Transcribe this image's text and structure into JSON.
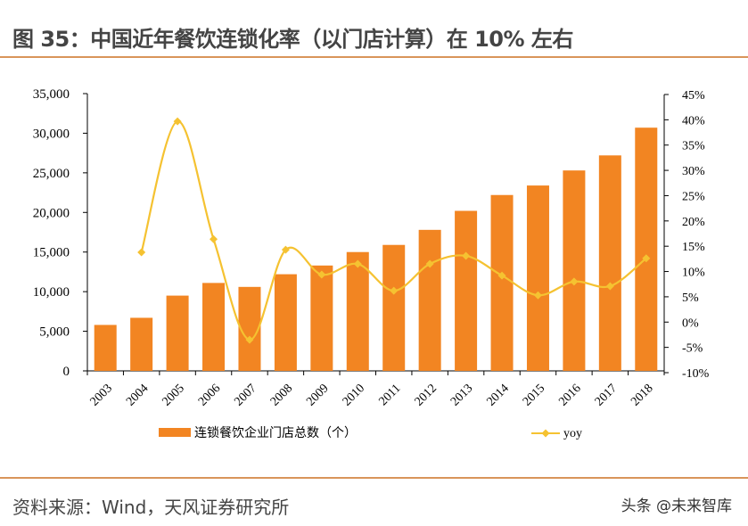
{
  "title": "图 35：中国近年餐饮连锁化率（以门店计算）在 10% 左右",
  "footer": {
    "source": "资料来源：Wind，天风证券研究所",
    "watermark": "头条 @未来智库"
  },
  "colors": {
    "bar": "#f28522",
    "line": "#f5c231",
    "rule": "#d9955a"
  },
  "chart_data": {
    "type": "bar+line",
    "categories": [
      "2003",
      "2004",
      "2005",
      "2006",
      "2007",
      "2008",
      "2009",
      "2010",
      "2011",
      "2012",
      "2013",
      "2014",
      "2015",
      "2016",
      "2017",
      "2018"
    ],
    "series": [
      {
        "name": "连锁餐饮企业门店总数（个）",
        "type": "bar",
        "axis": "left",
        "values": [
          5800,
          6700,
          9500,
          11100,
          10600,
          12200,
          13300,
          15000,
          15900,
          17800,
          20200,
          22200,
          23400,
          25300,
          27200,
          30700
        ]
      },
      {
        "name": "yoy",
        "type": "line",
        "axis": "right",
        "values": [
          null,
          13.8,
          39.7,
          16.4,
          -3.5,
          14.3,
          9.4,
          11.5,
          6.2,
          11.5,
          13.1,
          9.2,
          5.3,
          8.0,
          7.1,
          12.6
        ]
      }
    ],
    "left_axis": {
      "ylim": [
        0,
        35000
      ],
      "ticks": [
        "0",
        "5,000",
        "10,000",
        "15,000",
        "20,000",
        "25,000",
        "30,000",
        "35,000"
      ]
    },
    "right_axis": {
      "ylim": [
        -10,
        45
      ],
      "ticks": [
        "-10%",
        "-5%",
        "0%",
        "5%",
        "10%",
        "15%",
        "20%",
        "25%",
        "30%",
        "35%",
        "40%",
        "45%"
      ]
    },
    "legend": "bottom",
    "grid": false
  }
}
